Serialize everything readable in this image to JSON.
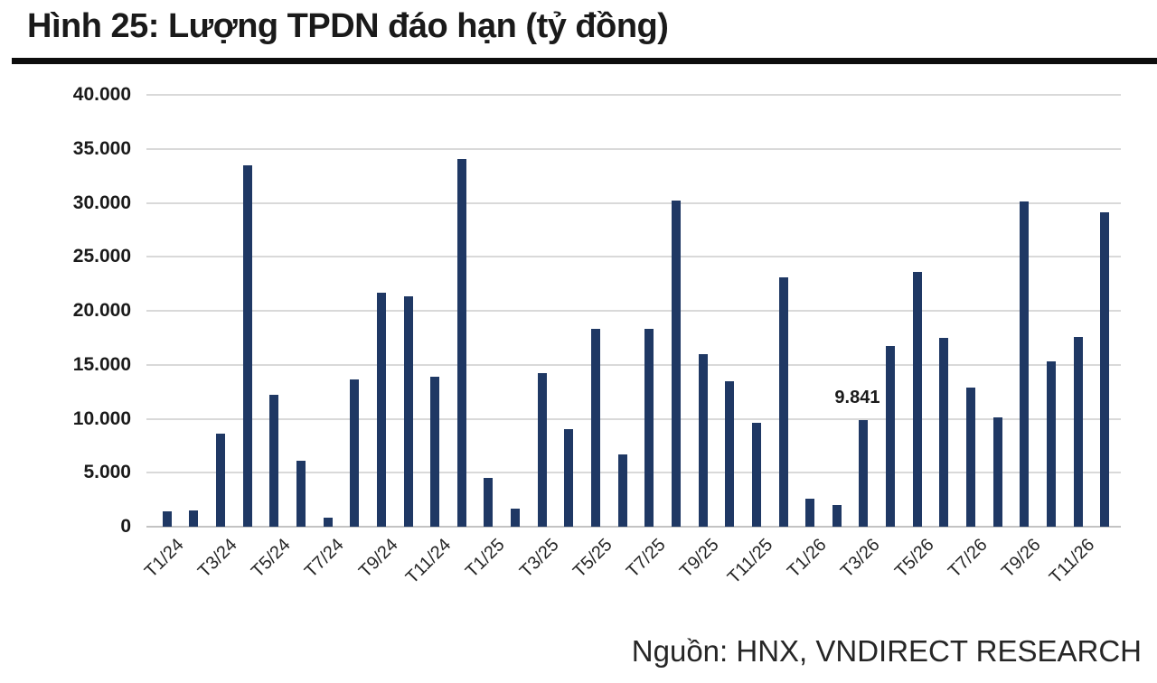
{
  "header": {
    "title": "Hình 25: Lượng TPDN đáo hạn (tỷ đồng)"
  },
  "footer": {
    "source": "Nguồn: HNX, VNDIRECT RESEARCH"
  },
  "chart_data": {
    "type": "bar",
    "title": "Hình 25: Lượng TPDN đáo hạn (tỷ đồng)",
    "unit": "tỷ đồng",
    "categories": [
      "T1/24",
      "T2/24",
      "T3/24",
      "T4/24",
      "T5/24",
      "T6/24",
      "T7/24",
      "T8/24",
      "T9/24",
      "T10/24",
      "T11/24",
      "T12/24",
      "T1/25",
      "T2/25",
      "T3/25",
      "T4/25",
      "T5/25",
      "T6/25",
      "T7/25",
      "T8/25",
      "T9/25",
      "T10/25",
      "T11/25",
      "T12/25",
      "T1/26",
      "T2/26",
      "T3/26",
      "T4/26",
      "T5/26",
      "T6/26",
      "T7/26",
      "T8/26",
      "T9/26",
      "T10/26",
      "T11/26",
      "T12/26"
    ],
    "values": [
      1400,
      1500,
      8600,
      33500,
      12200,
      6100,
      800,
      13600,
      21700,
      21300,
      13900,
      34100,
      4500,
      1700,
      14200,
      9000,
      18300,
      6700,
      18300,
      30200,
      16000,
      13500,
      9600,
      23100,
      2600,
      2000,
      9841,
      16700,
      23600,
      17500,
      12900,
      10100,
      30100,
      15300,
      17600,
      29100
    ],
    "x_tick_labels": [
      "T1/24",
      "T3/24",
      "T5/24",
      "T7/24",
      "T9/24",
      "T11/24",
      "T1/25",
      "T3/25",
      "T5/25",
      "T7/25",
      "T9/25",
      "T11/25",
      "T1/26",
      "T3/26",
      "T5/26",
      "T7/26",
      "T9/26",
      "T11/26"
    ],
    "x_tick_step": 2,
    "y_ticks": [
      0,
      5000,
      10000,
      15000,
      20000,
      25000,
      30000,
      35000,
      40000
    ],
    "y_tick_labels": [
      "0",
      "5.000",
      "10.000",
      "15.000",
      "20.000",
      "25.000",
      "30.000",
      "35.000",
      "40.000"
    ],
    "ylim": [
      0,
      40000
    ],
    "grid": true,
    "legend": false,
    "bar_color": "#1f3864",
    "annotation": {
      "index": 26,
      "text": "9.841"
    },
    "source": "Nguồn: HNX, VNDIRECT RESEARCH"
  }
}
